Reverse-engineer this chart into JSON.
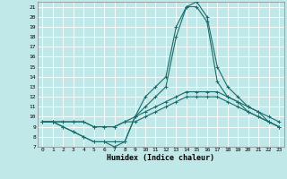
{
  "xlabel": "Humidex (Indice chaleur)",
  "xlim": [
    -0.5,
    23.5
  ],
  "ylim": [
    7,
    21.5
  ],
  "xticks": [
    0,
    1,
    2,
    3,
    4,
    5,
    6,
    7,
    8,
    9,
    10,
    11,
    12,
    13,
    14,
    15,
    16,
    17,
    18,
    19,
    20,
    21,
    22,
    23
  ],
  "yticks": [
    7,
    8,
    9,
    10,
    11,
    12,
    13,
    14,
    15,
    16,
    17,
    18,
    19,
    20,
    21
  ],
  "bg_color": "#c0e8e8",
  "grid_color": "#ffffff",
  "line_color": "#1a6b6b",
  "line1_y": [
    9.5,
    9.5,
    9.0,
    8.5,
    8.0,
    7.5,
    7.5,
    7.5,
    7.5,
    10.0,
    12.0,
    13.0,
    14.0,
    19.0,
    21.0,
    21.5,
    20.0,
    15.0,
    13.0,
    12.0,
    11.0,
    10.5,
    9.5,
    9.0
  ],
  "line2_y": [
    9.5,
    9.5,
    9.0,
    8.5,
    8.0,
    7.5,
    7.5,
    7.0,
    7.5,
    10.0,
    11.0,
    12.0,
    13.0,
    18.0,
    21.0,
    21.0,
    19.5,
    13.5,
    12.0,
    11.5,
    10.5,
    10.0,
    9.5,
    9.0
  ],
  "line3_y": [
    9.5,
    9.5,
    9.5,
    9.5,
    9.5,
    9.0,
    9.0,
    9.0,
    9.5,
    10.0,
    10.5,
    11.0,
    11.5,
    12.0,
    12.5,
    12.5,
    12.5,
    12.5,
    12.0,
    11.5,
    11.0,
    10.5,
    10.0,
    9.5
  ],
  "line4_y": [
    9.5,
    9.5,
    9.5,
    9.5,
    9.5,
    9.0,
    9.0,
    9.0,
    9.5,
    9.5,
    10.0,
    10.5,
    11.0,
    11.5,
    12.0,
    12.0,
    12.0,
    12.0,
    11.5,
    11.0,
    10.5,
    10.0,
    9.5,
    9.0
  ]
}
